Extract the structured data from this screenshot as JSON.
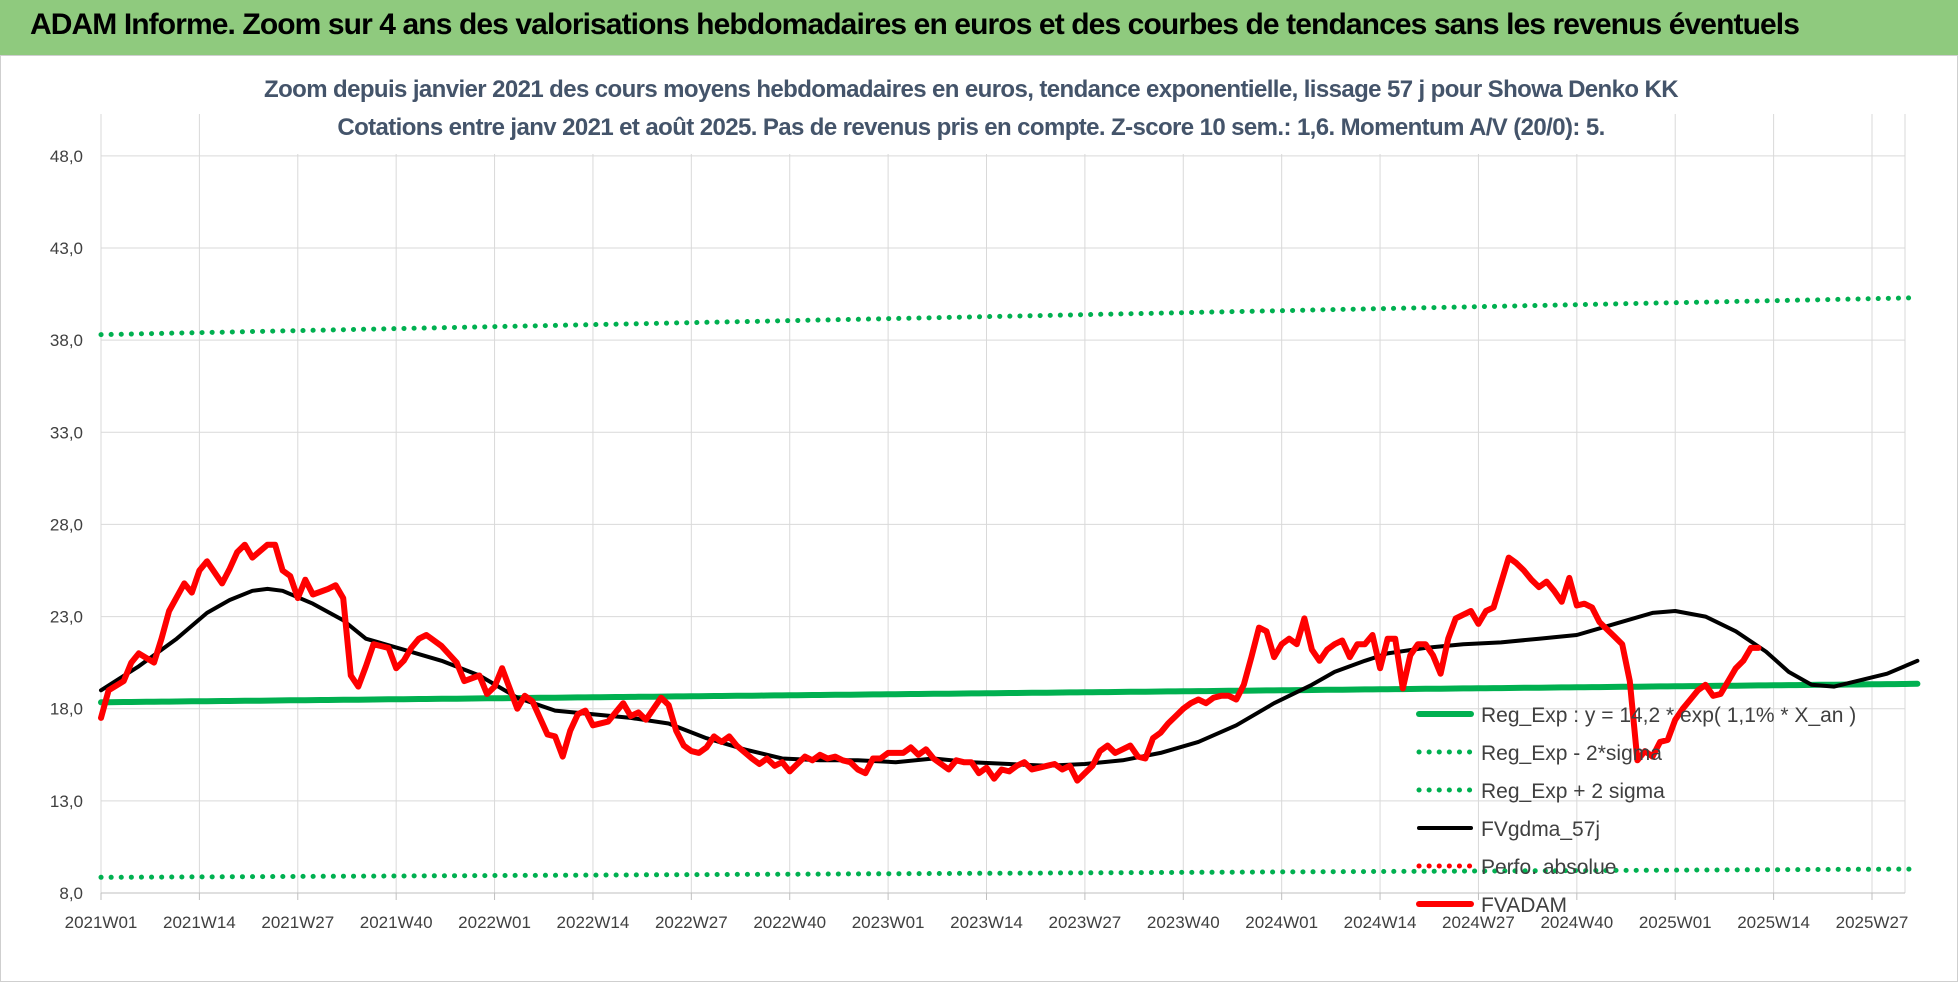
{
  "banner": {
    "title": "ADAM Informe. Zoom sur 4 ans des valorisations hebdomadaires en euros et des courbes de tendances sans les revenus éventuels"
  },
  "colors": {
    "banner_bg": "#8fca7e",
    "reg_exp": "#00b050",
    "fvgdma": "#000000",
    "fvadam": "#ff0000",
    "perfo": "#ff0000",
    "grid": "#d9d9d9",
    "title_text": "#44546a"
  },
  "chart_data": {
    "type": "line",
    "title": "Zoom depuis janvier 2021 des cours moyens hebdomadaires en euros, tendance exponentielle, lissage 57 j pour Showa Denko KK",
    "subtitle": "Cotations entre janv 2021 et août 2025. Pas de revenus pris en compte. Z-score 10 sem.: 1,6. Momentum A/V (20/0): 5.",
    "ylim": [
      8,
      50
    ],
    "yticks": [
      "8,0",
      "13,0",
      "18,0",
      "23,0",
      "28,0",
      "33,0",
      "38,0",
      "43,0",
      "48,0"
    ],
    "ytick_values": [
      8,
      13,
      18,
      23,
      28,
      33,
      38,
      43,
      48
    ],
    "xticks": [
      "2021W01",
      "2021W14",
      "2021W27",
      "2021W40",
      "2022W01",
      "2022W14",
      "2022W27",
      "2022W40",
      "2023W01",
      "2023W14",
      "2023W27",
      "2023W40",
      "2024W01",
      "2024W14",
      "2024W27",
      "2024W40",
      "2025W01",
      "2025W14",
      "2025W27"
    ],
    "xtick_week_index": [
      0,
      13,
      26,
      39,
      52,
      65,
      78,
      91,
      104,
      117,
      130,
      143,
      156,
      169,
      182,
      195,
      208,
      221,
      234
    ],
    "n_weeks": 240,
    "grid": true,
    "legend_position": "right",
    "series": [
      {
        "name": "Reg_Exp : y = 14,2 * exp( 1,1% *  X_an )",
        "style": "solid-thick",
        "color": "#00b050",
        "key_points": [
          [
            0,
            18.35
          ],
          [
            240,
            19.35
          ]
        ]
      },
      {
        "name": "Reg_Exp - 2*sigma",
        "style": "dotted",
        "color": "#00b050",
        "key_points": [
          [
            0,
            8.85
          ],
          [
            240,
            9.3
          ]
        ]
      },
      {
        "name": "Reg_Exp + 2 sigma",
        "style": "dotted",
        "color": "#00b050",
        "key_points": [
          [
            0,
            38.3
          ],
          [
            240,
            40.3
          ]
        ]
      },
      {
        "name": "FVgdma_57j",
        "style": "solid",
        "color": "#000000",
        "key_points": [
          [
            0,
            19.0
          ],
          [
            5,
            20.3
          ],
          [
            10,
            21.8
          ],
          [
            14,
            23.2
          ],
          [
            17,
            23.9
          ],
          [
            20,
            24.4
          ],
          [
            22,
            24.5
          ],
          [
            24,
            24.4
          ],
          [
            28,
            23.7
          ],
          [
            32,
            22.8
          ],
          [
            35,
            21.8
          ],
          [
            40,
            21.2
          ],
          [
            45,
            20.6
          ],
          [
            50,
            19.8
          ],
          [
            55,
            18.6
          ],
          [
            60,
            17.9
          ],
          [
            65,
            17.7
          ],
          [
            70,
            17.5
          ],
          [
            75,
            17.2
          ],
          [
            80,
            16.4
          ],
          [
            85,
            15.8
          ],
          [
            90,
            15.3
          ],
          [
            95,
            15.2
          ],
          [
            100,
            15.2
          ],
          [
            105,
            15.1
          ],
          [
            110,
            15.3
          ],
          [
            115,
            15.1
          ],
          [
            120,
            15.0
          ],
          [
            125,
            14.9
          ],
          [
            130,
            15.0
          ],
          [
            135,
            15.2
          ],
          [
            140,
            15.6
          ],
          [
            145,
            16.2
          ],
          [
            150,
            17.1
          ],
          [
            155,
            18.3
          ],
          [
            160,
            19.3
          ],
          [
            163,
            20.0
          ],
          [
            167,
            20.6
          ],
          [
            170,
            21.0
          ],
          [
            175,
            21.3
          ],
          [
            180,
            21.5
          ],
          [
            185,
            21.6
          ],
          [
            190,
            21.8
          ],
          [
            195,
            22.0
          ],
          [
            200,
            22.6
          ],
          [
            205,
            23.2
          ],
          [
            208,
            23.3
          ],
          [
            212,
            23.0
          ],
          [
            216,
            22.2
          ],
          [
            220,
            21.1
          ],
          [
            223,
            20.0
          ],
          [
            226,
            19.3
          ],
          [
            229,
            19.2
          ],
          [
            232,
            19.5
          ],
          [
            236,
            19.9
          ],
          [
            240,
            20.6
          ]
        ]
      },
      {
        "name": "Perfo. absolue",
        "style": "dotted",
        "color": "#ff0000",
        "key_points": []
      },
      {
        "name": "FVADAM",
        "style": "solid-thick",
        "color": "#ff0000",
        "key_points": [
          [
            0,
            17.5
          ],
          [
            1,
            19.0
          ],
          [
            3,
            19.5
          ],
          [
            4,
            20.5
          ],
          [
            5,
            21.0
          ],
          [
            7,
            20.5
          ],
          [
            8,
            21.8
          ],
          [
            9,
            23.3
          ],
          [
            11,
            24.8
          ],
          [
            12,
            24.3
          ],
          [
            13,
            25.5
          ],
          [
            14,
            26.0
          ],
          [
            16,
            24.8
          ],
          [
            17,
            25.6
          ],
          [
            18,
            26.5
          ],
          [
            19,
            26.9
          ],
          [
            20,
            26.2
          ],
          [
            22,
            26.9
          ],
          [
            23,
            26.9
          ],
          [
            24,
            25.5
          ],
          [
            25,
            25.2
          ],
          [
            26,
            24.0
          ],
          [
            27,
            25.0
          ],
          [
            28,
            24.2
          ],
          [
            30,
            24.5
          ],
          [
            31,
            24.7
          ],
          [
            32,
            24.0
          ],
          [
            33,
            19.8
          ],
          [
            34,
            19.2
          ],
          [
            35,
            20.3
          ],
          [
            36,
            21.5
          ],
          [
            38,
            21.3
          ],
          [
            39,
            20.2
          ],
          [
            40,
            20.6
          ],
          [
            41,
            21.3
          ],
          [
            42,
            21.8
          ],
          [
            43,
            22.0
          ],
          [
            45,
            21.4
          ],
          [
            47,
            20.5
          ],
          [
            48,
            19.5
          ],
          [
            50,
            19.8
          ],
          [
            51,
            18.8
          ],
          [
            52,
            19.2
          ],
          [
            53,
            20.2
          ],
          [
            55,
            18.0
          ],
          [
            56,
            18.7
          ],
          [
            57,
            18.4
          ],
          [
            59,
            16.6
          ],
          [
            60,
            16.5
          ],
          [
            61,
            15.4
          ],
          [
            62,
            16.8
          ],
          [
            63,
            17.7
          ],
          [
            64,
            17.9
          ],
          [
            65,
            17.1
          ],
          [
            67,
            17.3
          ],
          [
            68,
            17.8
          ],
          [
            69,
            18.3
          ],
          [
            70,
            17.6
          ],
          [
            71,
            17.8
          ],
          [
            72,
            17.4
          ],
          [
            74,
            18.6
          ],
          [
            75,
            18.2
          ],
          [
            76,
            16.8
          ],
          [
            77,
            16.0
          ],
          [
            78,
            15.7
          ],
          [
            79,
            15.6
          ],
          [
            80,
            15.9
          ],
          [
            81,
            16.5
          ],
          [
            82,
            16.2
          ],
          [
            83,
            16.5
          ],
          [
            84,
            16.0
          ],
          [
            86,
            15.3
          ],
          [
            87,
            15.0
          ],
          [
            88,
            15.3
          ],
          [
            89,
            14.9
          ],
          [
            90,
            15.1
          ],
          [
            91,
            14.6
          ],
          [
            92,
            15.0
          ],
          [
            93,
            15.4
          ],
          [
            94,
            15.2
          ],
          [
            95,
            15.5
          ],
          [
            96,
            15.3
          ],
          [
            97,
            15.4
          ],
          [
            98,
            15.2
          ],
          [
            99,
            15.1
          ],
          [
            100,
            14.7
          ],
          [
            101,
            14.5
          ],
          [
            102,
            15.3
          ],
          [
            103,
            15.3
          ],
          [
            104,
            15.6
          ],
          [
            106,
            15.6
          ],
          [
            107,
            15.9
          ],
          [
            108,
            15.5
          ],
          [
            109,
            15.8
          ],
          [
            110,
            15.3
          ],
          [
            111,
            15.0
          ],
          [
            112,
            14.7
          ],
          [
            113,
            15.2
          ],
          [
            114,
            15.1
          ],
          [
            115,
            15.1
          ],
          [
            116,
            14.5
          ],
          [
            117,
            14.8
          ],
          [
            118,
            14.2
          ],
          [
            119,
            14.7
          ],
          [
            120,
            14.6
          ],
          [
            121,
            14.9
          ],
          [
            122,
            15.1
          ],
          [
            123,
            14.7
          ],
          [
            124,
            14.8
          ],
          [
            125,
            14.9
          ],
          [
            126,
            15.0
          ],
          [
            127,
            14.7
          ],
          [
            128,
            14.9
          ],
          [
            129,
            14.1
          ],
          [
            130,
            14.5
          ],
          [
            131,
            14.9
          ],
          [
            132,
            15.7
          ],
          [
            133,
            16.0
          ],
          [
            134,
            15.6
          ],
          [
            135,
            15.8
          ],
          [
            136,
            16.0
          ],
          [
            137,
            15.4
          ],
          [
            138,
            15.3
          ],
          [
            139,
            16.4
          ],
          [
            140,
            16.7
          ],
          [
            141,
            17.2
          ],
          [
            142,
            17.6
          ],
          [
            143,
            18.0
          ],
          [
            144,
            18.3
          ],
          [
            145,
            18.5
          ],
          [
            146,
            18.3
          ],
          [
            147,
            18.6
          ],
          [
            148,
            18.7
          ],
          [
            149,
            18.7
          ],
          [
            150,
            18.5
          ],
          [
            151,
            19.3
          ],
          [
            152,
            20.8
          ],
          [
            153,
            22.4
          ],
          [
            154,
            22.2
          ],
          [
            155,
            20.8
          ],
          [
            156,
            21.5
          ],
          [
            157,
            21.8
          ],
          [
            158,
            21.5
          ],
          [
            159,
            22.9
          ],
          [
            160,
            21.2
          ],
          [
            161,
            20.6
          ],
          [
            162,
            21.2
          ],
          [
            163,
            21.5
          ],
          [
            164,
            21.7
          ],
          [
            165,
            20.8
          ],
          [
            166,
            21.5
          ],
          [
            167,
            21.5
          ],
          [
            168,
            22.0
          ],
          [
            169,
            20.2
          ],
          [
            170,
            21.8
          ],
          [
            171,
            21.8
          ],
          [
            172,
            19.1
          ],
          [
            173,
            20.9
          ],
          [
            174,
            21.5
          ],
          [
            175,
            21.5
          ],
          [
            176,
            20.9
          ],
          [
            177,
            19.9
          ],
          [
            178,
            21.8
          ],
          [
            179,
            22.9
          ],
          [
            180,
            23.1
          ],
          [
            181,
            23.3
          ],
          [
            182,
            22.6
          ],
          [
            183,
            23.3
          ],
          [
            184,
            23.5
          ],
          [
            186,
            26.2
          ],
          [
            187,
            25.9
          ],
          [
            188,
            25.5
          ],
          [
            189,
            25.0
          ],
          [
            190,
            24.6
          ],
          [
            191,
            24.9
          ],
          [
            192,
            24.4
          ],
          [
            193,
            23.8
          ],
          [
            194,
            25.1
          ],
          [
            195,
            23.6
          ],
          [
            196,
            23.7
          ],
          [
            197,
            23.5
          ],
          [
            198,
            22.7
          ],
          [
            200,
            21.9
          ],
          [
            201,
            21.5
          ],
          [
            202,
            19.5
          ],
          [
            203,
            15.2
          ],
          [
            204,
            15.7
          ],
          [
            205,
            15.4
          ],
          [
            206,
            16.2
          ],
          [
            207,
            16.3
          ],
          [
            208,
            17.4
          ],
          [
            209,
            18.0
          ],
          [
            210,
            18.5
          ],
          [
            211,
            19.0
          ],
          [
            212,
            19.3
          ],
          [
            213,
            18.7
          ],
          [
            214,
            18.8
          ],
          [
            215,
            19.5
          ],
          [
            216,
            20.2
          ],
          [
            217,
            20.6
          ],
          [
            218,
            21.3
          ],
          [
            219,
            21.3
          ]
        ]
      }
    ]
  }
}
